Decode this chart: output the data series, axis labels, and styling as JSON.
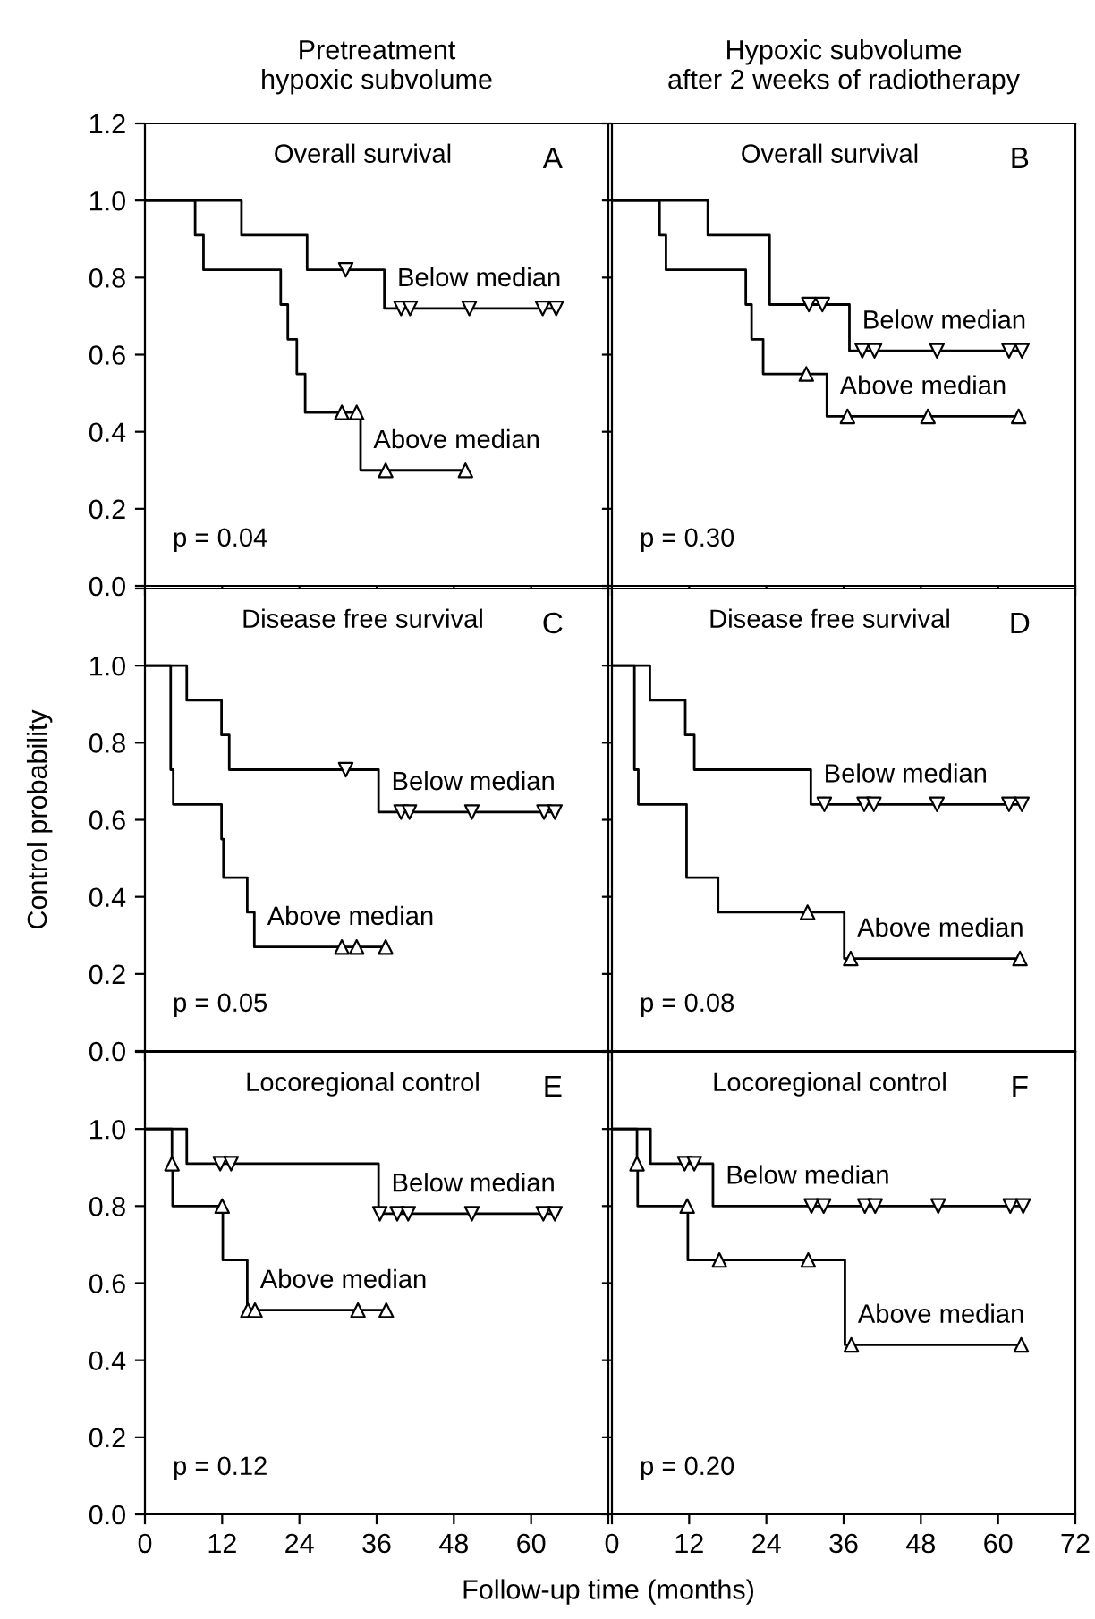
{
  "chart_data": [
    {
      "type": "step",
      "title": "Pretreatment\nhypoxic subvolume",
      "subtitle": "Overall survival",
      "annotations": [
        "A",
        "p = 0.04"
      ],
      "xlim": [
        0,
        72
      ],
      "ylim": [
        0,
        1.2
      ],
      "xticks": [
        0,
        12,
        24,
        36,
        48,
        60,
        72
      ],
      "yticks": [
        {
          "value": 0,
          "label": "0.0"
        },
        {
          "value": 0.2,
          "label": "0.2"
        },
        {
          "value": 0.4,
          "label": "0.4"
        },
        {
          "value": 0.6,
          "label": "0.6"
        },
        {
          "value": 0.8,
          "label": "0.8"
        },
        {
          "value": 1.0,
          "label": "1.0"
        },
        {
          "value": 1.2,
          "label": "1.2"
        }
      ],
      "tick_labels": "y",
      "series": [
        {
          "name": "Below median",
          "color": "#000000",
          "x": [
            0,
            15,
            25.2,
            37.2,
            63.9
          ],
          "values": [
            1.0,
            0.91,
            0.82,
            0.72,
            0.72
          ]
        },
        {
          "type": "scatter",
          "marker": "triangle_down",
          "color": "#000000",
          "x": [
            31.2,
            39.8,
            41.2,
            50.4,
            61.8,
            63.9
          ],
          "values": [
            0.82,
            0.72,
            0.72,
            0.72,
            0.72,
            0.72
          ]
        },
        {
          "name": "Above median",
          "color": "#000000",
          "x": [
            0,
            7.8,
            9.1,
            21.1,
            22.2,
            23.6,
            24.9,
            33.5,
            49.8
          ],
          "values": [
            1.0,
            0.91,
            0.82,
            0.73,
            0.64,
            0.55,
            0.45,
            0.3,
            0.3
          ]
        },
        {
          "type": "scatter",
          "marker": "triangle",
          "color": "#000000",
          "x": [
            30.6,
            32.9,
            37.4,
            49.8
          ],
          "values": [
            0.45,
            0.45,
            0.3,
            0.3
          ]
        }
      ]
    },
    {
      "type": "step",
      "title": "Hypoxic subvolume\nafter 2 weeks of radiotherapy",
      "subtitle": "Overall survival",
      "annotations": [
        "B",
        "p = 0.30"
      ],
      "xlim": [
        0,
        72
      ],
      "ylim": [
        0,
        1.2
      ],
      "xticks": [
        0,
        12,
        24,
        36,
        48,
        60,
        72
      ],
      "yticks": [
        0,
        0.2,
        0.4,
        0.6,
        0.8,
        1.0,
        1.2
      ],
      "tick_labels": false,
      "series": [
        {
          "name": "Below median",
          "color": "#000000",
          "x": [
            0,
            14.9,
            24.5,
            36.9,
            63.7
          ],
          "values": [
            1.0,
            0.91,
            0.73,
            0.61,
            0.61
          ]
        },
        {
          "type": "scatter",
          "marker": "triangle_down",
          "color": "#000000",
          "x": [
            30.6,
            32.7,
            38.9,
            40.8,
            50.5,
            61.7,
            63.7
          ],
          "values": [
            0.73,
            0.73,
            0.61,
            0.61,
            0.61,
            0.61,
            0.61
          ]
        },
        {
          "name": "Above median",
          "color": "#000000",
          "x": [
            0,
            7.4,
            8.4,
            20.8,
            21.7,
            23.5,
            33.4,
            63.2
          ],
          "values": [
            1.0,
            0.91,
            0.82,
            0.73,
            0.64,
            0.55,
            0.44,
            0.44
          ]
        },
        {
          "type": "scatter",
          "marker": "triangle",
          "color": "#000000",
          "x": [
            30.2,
            36.6,
            49.1,
            63.2
          ],
          "values": [
            0.55,
            0.44,
            0.44,
            0.44
          ]
        }
      ]
    },
    {
      "type": "step",
      "subtitle": "Disease free survival",
      "ylabel": "Control probability",
      "annotations": [
        "C",
        "p = 0.05"
      ],
      "xlim": [
        0,
        72
      ],
      "ylim": [
        0,
        1.2
      ],
      "xticks": [
        0,
        12,
        24,
        36,
        48,
        60,
        72
      ],
      "yticks": [
        {
          "value": 0,
          "label": "0.0"
        },
        {
          "value": 0.2,
          "label": "0.2"
        },
        {
          "value": 0.4,
          "label": "0.4"
        },
        {
          "value": 0.6,
          "label": "0.6"
        },
        {
          "value": 0.8,
          "label": "0.8"
        },
        {
          "value": 1.0,
          "label": "1.0"
        },
        {
          "value": 1.2,
          "label": null
        }
      ],
      "tick_labels": "y",
      "series": [
        {
          "name": "Below median",
          "color": "#000000",
          "x": [
            0,
            6.5,
            11.9,
            13.1,
            36.3,
            63.7
          ],
          "values": [
            1.0,
            0.91,
            0.82,
            0.73,
            0.62,
            0.62
          ]
        },
        {
          "type": "scatter",
          "marker": "triangle_down",
          "color": "#000000",
          "x": [
            31.2,
            39.8,
            41.1,
            50.8,
            62.0,
            63.7
          ],
          "values": [
            0.73,
            0.62,
            0.62,
            0.62,
            0.62,
            0.62
          ]
        },
        {
          "name": "Above median",
          "color": "#000000",
          "x": [
            0,
            4.0,
            4.4,
            11.9,
            12.2,
            15.9,
            17.0,
            37.4
          ],
          "values": [
            1.0,
            0.73,
            0.64,
            0.55,
            0.45,
            0.36,
            0.27,
            0.27
          ]
        },
        {
          "type": "scatter",
          "marker": "triangle",
          "color": "#000000",
          "x": [
            30.6,
            32.9,
            37.4
          ],
          "values": [
            0.27,
            0.27,
            0.27
          ]
        }
      ]
    },
    {
      "type": "step",
      "subtitle": "Disease free survival",
      "annotations": [
        "D",
        "p = 0.08"
      ],
      "xlim": [
        0,
        72
      ],
      "ylim": [
        0,
        1.2
      ],
      "xticks": [
        0,
        12,
        24,
        36,
        48,
        60,
        72
      ],
      "yticks": [
        0,
        0.2,
        0.4,
        0.6,
        0.8,
        1.0,
        1.2
      ],
      "tick_labels": false,
      "series": [
        {
          "name": "Below median",
          "color": "#000000",
          "x": [
            0,
            5.9,
            11.4,
            12.8,
            30.9,
            63.7
          ],
          "values": [
            1.0,
            0.91,
            0.82,
            0.73,
            0.64,
            0.64
          ]
        },
        {
          "type": "scatter",
          "marker": "triangle_down",
          "color": "#000000",
          "x": [
            33.0,
            39.2,
            40.7,
            50.5,
            61.7,
            63.7
          ],
          "values": [
            0.64,
            0.64,
            0.64,
            0.64,
            0.64,
            0.64
          ]
        },
        {
          "name": "Above median",
          "color": "#000000",
          "x": [
            0,
            3.5,
            4.1,
            11.6,
            16.5,
            36.1,
            63.4
          ],
          "values": [
            1.0,
            0.73,
            0.64,
            0.45,
            0.36,
            0.24,
            0.24
          ]
        },
        {
          "type": "scatter",
          "marker": "triangle",
          "color": "#000000",
          "x": [
            30.4,
            37.1,
            63.4
          ],
          "values": [
            0.36,
            0.24,
            0.24
          ]
        }
      ]
    },
    {
      "type": "step",
      "subtitle": "Locoregional control",
      "xlabel": "Follow-up time (months)",
      "annotations": [
        "E",
        "p = 0.12"
      ],
      "xlim": [
        0,
        72
      ],
      "ylim": [
        0,
        1.2
      ],
      "xticks": [
        0,
        12,
        24,
        36,
        48,
        60,
        {
          "value": 72,
          "label": null
        }
      ],
      "yticks": [
        {
          "value": 0,
          "label": "0.0"
        },
        {
          "value": 0.2,
          "label": "0.2"
        },
        {
          "value": 0.4,
          "label": "0.4"
        },
        {
          "value": 0.6,
          "label": "0.6"
        },
        {
          "value": 0.8,
          "label": "0.8"
        },
        {
          "value": 1.0,
          "label": "1.0"
        },
        {
          "value": 1.2,
          "label": null
        }
      ],
      "series": [
        {
          "name": "Below median",
          "color": "#000000",
          "x": [
            0,
            6.5,
            36.3,
            63.7
          ],
          "values": [
            1.0,
            0.91,
            0.78,
            0.78
          ]
        },
        {
          "type": "scatter",
          "marker": "triangle_down",
          "color": "#000000",
          "x": [
            11.7,
            13.4,
            36.5,
            39.2,
            40.9,
            50.8,
            61.9,
            63.7
          ],
          "values": [
            0.91,
            0.91,
            0.78,
            0.78,
            0.78,
            0.78,
            0.78,
            0.78
          ]
        },
        {
          "name": "Above median",
          "color": "#000000",
          "x": [
            0,
            4.2,
            4.3,
            12.1,
            15.9,
            37.5
          ],
          "values": [
            1.0,
            0.91,
            0.8,
            0.66,
            0.53,
            0.53
          ]
        },
        {
          "type": "scatter",
          "marker": "triangle",
          "color": "#000000",
          "x": [
            4.2,
            12.0,
            16.0,
            17.1,
            33.1,
            37.5
          ],
          "values": [
            0.91,
            0.8,
            0.53,
            0.53,
            0.53,
            0.53
          ]
        }
      ]
    },
    {
      "type": "step",
      "subtitle": "Locoregional control",
      "annotations": [
        "F",
        "p = 0.20"
      ],
      "xlim": [
        0,
        72
      ],
      "ylim": [
        0,
        1.2
      ],
      "xticks": [
        0,
        12,
        24,
        36,
        48,
        60,
        72
      ],
      "yticks": [
        0,
        0.2,
        0.4,
        0.6,
        0.8,
        1.0,
        1.2
      ],
      "tick_labels": "x",
      "series": [
        {
          "name": "Below median",
          "color": "#000000",
          "x": [
            0,
            6.0,
            15.7,
            63.9
          ],
          "values": [
            1.0,
            0.91,
            0.8,
            0.8
          ]
        },
        {
          "type": "scatter",
          "marker": "triangle_down",
          "color": "#000000",
          "x": [
            11.3,
            12.8,
            31.0,
            32.9,
            39.3,
            40.9,
            50.7,
            61.9,
            63.9
          ],
          "values": [
            0.91,
            0.91,
            0.8,
            0.8,
            0.8,
            0.8,
            0.8,
            0.8,
            0.8
          ]
        },
        {
          "name": "Above median",
          "color": "#000000",
          "x": [
            0,
            3.9,
            4.0,
            11.8,
            36.2,
            63.6
          ],
          "values": [
            1.0,
            0.91,
            0.8,
            0.66,
            0.44,
            0.44
          ]
        },
        {
          "type": "scatter",
          "marker": "triangle",
          "color": "#000000",
          "x": [
            3.9,
            11.7,
            16.7,
            30.5,
            37.2,
            63.6
          ],
          "values": [
            0.91,
            0.8,
            0.66,
            0.66,
            0.44,
            0.44
          ]
        }
      ]
    }
  ]
}
